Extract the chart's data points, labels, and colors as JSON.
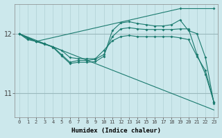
{
  "xlabel": "Humidex (Indice chaleur)",
  "bg_color": "#cce8ec",
  "grid_color_v": "#b0d0d4",
  "grid_color_h": "#9ab8bc",
  "line_color": "#1a7a6e",
  "xlim": [
    -0.5,
    23.5
  ],
  "ylim": [
    10.6,
    12.5
  ],
  "yticks": [
    11,
    12
  ],
  "xticks": [
    0,
    1,
    2,
    3,
    4,
    5,
    6,
    7,
    8,
    9,
    10,
    11,
    12,
    13,
    14,
    15,
    16,
    17,
    18,
    19,
    20,
    21,
    22,
    23
  ],
  "lines": [
    {
      "x": [
        0,
        23
      ],
      "y": [
        12.0,
        10.72
      ]
    },
    {
      "x": [
        0,
        1,
        2,
        3,
        4,
        5,
        6,
        7,
        8,
        9,
        10,
        11,
        12,
        13,
        14,
        15,
        16,
        17,
        18,
        19,
        20,
        21,
        22,
        23
      ],
      "y": [
        12.0,
        11.9,
        11.87,
        11.82,
        11.78,
        11.72,
        11.6,
        11.58,
        11.58,
        11.58,
        11.72,
        11.88,
        11.95,
        11.97,
        11.95,
        11.95,
        11.95,
        11.95,
        11.95,
        11.93,
        11.9,
        11.62,
        11.38,
        10.85
      ]
    },
    {
      "x": [
        0,
        1,
        2,
        3,
        4,
        5,
        6,
        7,
        8,
        9,
        10,
        11,
        12,
        13,
        14,
        15,
        16,
        17,
        18,
        19,
        20,
        21,
        22,
        23
      ],
      "y": [
        12.0,
        11.92,
        11.87,
        11.83,
        11.78,
        11.65,
        11.52,
        11.55,
        11.55,
        11.57,
        11.65,
        11.95,
        12.08,
        12.1,
        12.08,
        12.07,
        12.07,
        12.07,
        12.07,
        12.08,
        12.08,
        11.65,
        11.32,
        10.85
      ]
    },
    {
      "x": [
        0,
        1,
        2,
        3,
        4,
        5,
        6,
        7,
        8,
        9,
        10,
        11,
        12,
        13,
        14,
        15,
        16,
        17,
        18,
        19,
        20,
        21,
        22,
        23
      ],
      "y": [
        12.0,
        11.93,
        11.87,
        11.83,
        11.77,
        11.63,
        11.5,
        11.52,
        11.52,
        11.53,
        11.62,
        12.05,
        12.18,
        12.2,
        12.17,
        12.15,
        12.13,
        12.13,
        12.15,
        12.23,
        12.05,
        12.0,
        11.6,
        10.83
      ]
    },
    {
      "x": [
        0,
        2,
        19,
        23
      ],
      "y": [
        12.0,
        11.87,
        12.42,
        12.42
      ]
    }
  ]
}
